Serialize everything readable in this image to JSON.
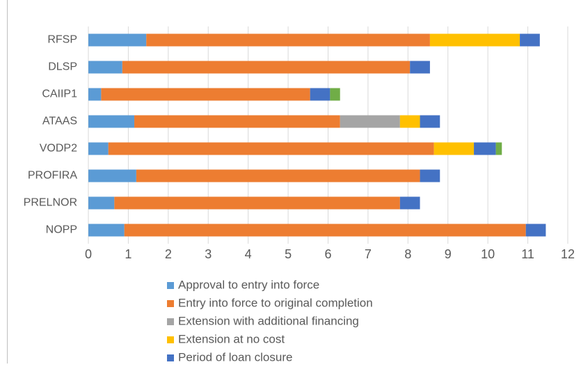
{
  "chart_data": {
    "type": "stacked-bar-horizontal",
    "categories": [
      "RFSP",
      "DLSP",
      "CAIIP1",
      "ATAAS",
      "VODP2",
      "PROFIRA",
      "PRELNOR",
      "NOPP"
    ],
    "series": [
      {
        "name": "Approval to entry into force",
        "color": "#5b9bd5",
        "values": [
          1.45,
          0.85,
          0.32,
          1.15,
          0.5,
          1.2,
          0.65,
          0.9
        ]
      },
      {
        "name": "Entry into force to original completion",
        "color": "#ed7d31",
        "values": [
          7.1,
          7.2,
          5.23,
          5.15,
          8.15,
          7.1,
          7.15,
          10.05
        ]
      },
      {
        "name": "Extension with additional financing",
        "color": "#a5a5a5",
        "values": [
          0,
          0,
          0,
          1.5,
          0,
          0,
          0,
          0
        ]
      },
      {
        "name": "Extension at no cost",
        "color": "#ffc000",
        "values": [
          2.25,
          0,
          0,
          0.5,
          1.0,
          0,
          0,
          0
        ]
      },
      {
        "name": "Period of loan closure",
        "color": "#4472c4",
        "values": [
          0.5,
          0.5,
          0.5,
          0.5,
          0.55,
          0.5,
          0.5,
          0.5
        ]
      },
      {
        "color": "#70ad47",
        "values": [
          0,
          0,
          0.25,
          0,
          0.15,
          0,
          0,
          0
        ]
      }
    ],
    "xlim": [
      0,
      12
    ],
    "xticks": [
      0,
      1,
      2,
      3,
      4,
      5,
      6,
      7,
      8,
      9,
      10,
      11,
      12
    ],
    "grid": true
  }
}
